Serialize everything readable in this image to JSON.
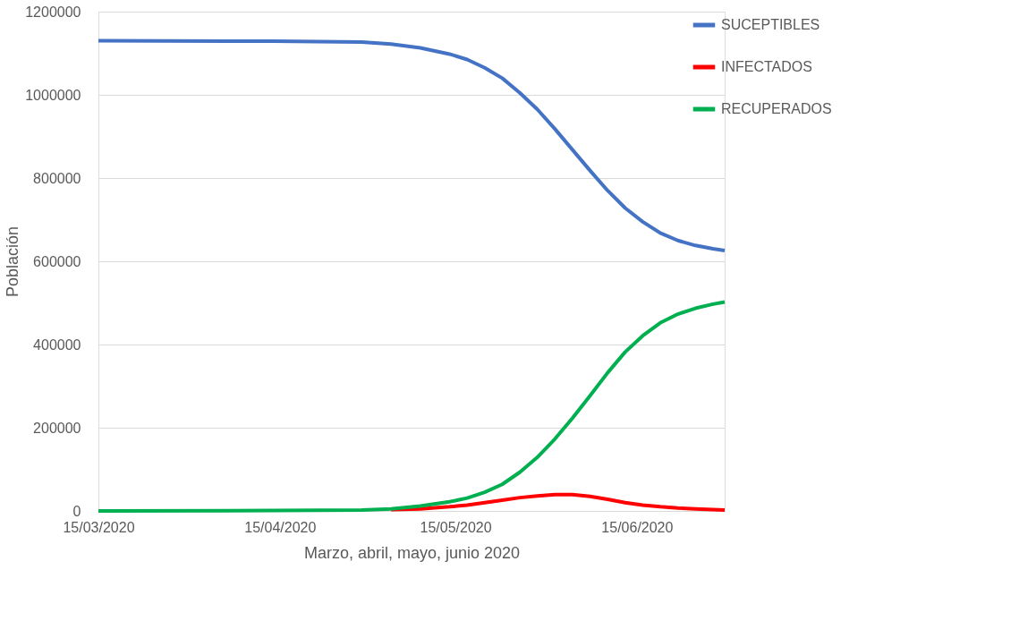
{
  "chart_data": {
    "type": "line",
    "xlabel": "Marzo, abril, mayo, junio 2020",
    "ylabel": "Población",
    "x": [
      "2020-03-15",
      "2020-04-14",
      "2020-04-29",
      "2020-05-04",
      "2020-05-09",
      "2020-05-14",
      "2020-05-17",
      "2020-05-20",
      "2020-05-23",
      "2020-05-26",
      "2020-05-29",
      "2020-06-01",
      "2020-06-04",
      "2020-06-07",
      "2020-06-10",
      "2020-06-13",
      "2020-06-16",
      "2020-06-19",
      "2020-06-22",
      "2020-06-25",
      "2020-06-28",
      "2020-06-30"
    ],
    "series": [
      {
        "name": "SUCEPTIBLES",
        "color": "#4472c4",
        "values": [
          1130000,
          1129000,
          1127000,
          1122000,
          1113000,
          1098000,
          1085000,
          1065000,
          1040000,
          1005000,
          965000,
          918000,
          868000,
          818000,
          770000,
          728000,
          695000,
          668000,
          650000,
          638000,
          630000,
          626000
        ]
      },
      {
        "name": "INFECTADOS",
        "color": "#ff0000",
        "values": [
          null,
          null,
          null,
          3000,
          5000,
          10000,
          14000,
          20000,
          26000,
          32000,
          36000,
          39000,
          39000,
          35000,
          28000,
          20000,
          14000,
          10000,
          7000,
          5000,
          3000,
          2000
        ]
      },
      {
        "name": "RECUPERADOS",
        "color": "#00b050",
        "values": [
          0,
          1000,
          2000,
          5000,
          12000,
          22000,
          31000,
          45000,
          64000,
          93000,
          129000,
          173000,
          223000,
          277000,
          332000,
          382000,
          421000,
          452000,
          473000,
          487000,
          497000,
          502000
        ]
      }
    ],
    "xlim": [
      "2020-03-15",
      "2020-06-30"
    ],
    "xticks": [
      {
        "value": "2020-03-15",
        "label": "15/03/2020"
      },
      {
        "value": "2020-04-15",
        "label": "15/04/2020"
      },
      {
        "value": "2020-05-15",
        "label": "15/05/2020"
      },
      {
        "value": "2020-06-15",
        "label": "15/06/2020"
      }
    ],
    "ylim": [
      0,
      1200000
    ],
    "yticks": [
      0,
      200000,
      400000,
      600000,
      800000,
      1000000,
      1200000
    ],
    "grid": "y",
    "legend": "right",
    "marker": "none",
    "line_style": "solid"
  }
}
